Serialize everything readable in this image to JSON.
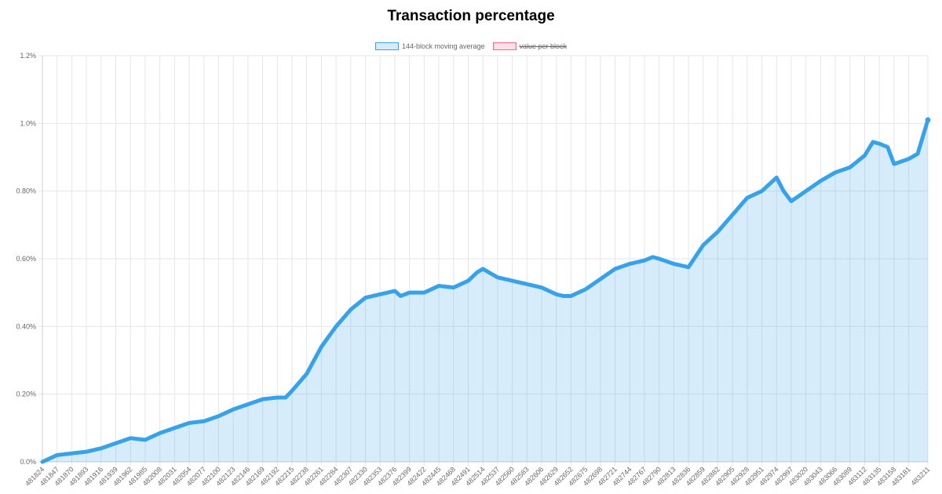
{
  "chart_data": {
    "type": "line",
    "title": "Transaction percentage",
    "xlabel": "",
    "ylabel": "",
    "ylim": [
      0,
      1.2
    ],
    "y_ticks": [
      "0.0%",
      "0.20%",
      "0.40%",
      "0.60%",
      "0.80%",
      "1.0%",
      "1.2%"
    ],
    "x_ticks": [
      "481824",
      "481847",
      "481870",
      "481893",
      "481916",
      "481939",
      "481962",
      "481985",
      "482008",
      "482031",
      "482054",
      "482077",
      "482100",
      "482123",
      "482146",
      "482169",
      "482192",
      "482215",
      "482238",
      "482261",
      "482284",
      "482307",
      "482330",
      "482353",
      "482376",
      "482399",
      "482422",
      "482445",
      "482468",
      "482491",
      "482514",
      "482537",
      "482560",
      "482583",
      "482606",
      "482629",
      "482652",
      "482675",
      "482698",
      "482721",
      "482744",
      "482767",
      "482790",
      "482813",
      "482836",
      "482859",
      "482882",
      "482905",
      "482928",
      "482951",
      "482974",
      "482997",
      "483020",
      "483043",
      "483066",
      "483089",
      "483112",
      "483135",
      "483158",
      "483181",
      "483211"
    ],
    "grid": true,
    "legend_position": "top",
    "series": [
      {
        "name": "144-block moving average",
        "color": "#36a2eb",
        "fill": "rgba(54,162,235,0.2)",
        "hidden": false,
        "x": [
          481824,
          481847,
          481870,
          481893,
          481916,
          481939,
          481962,
          481985,
          482008,
          482031,
          482054,
          482077,
          482100,
          482123,
          482146,
          482169,
          482192,
          482205,
          482215,
          482238,
          482261,
          482284,
          482307,
          482330,
          482353,
          482376,
          482385,
          482399,
          482422,
          482445,
          482468,
          482491,
          482505,
          482514,
          482537,
          482560,
          482583,
          482606,
          482629,
          482640,
          482652,
          482675,
          482698,
          482721,
          482744,
          482767,
          482780,
          482790,
          482813,
          482825,
          482836,
          482859,
          482882,
          482905,
          482928,
          482951,
          482974,
          482985,
          482997,
          483020,
          483043,
          483066,
          483089,
          483112,
          483125,
          483135,
          483148,
          483158,
          483181,
          483195,
          483211
        ],
        "values": [
          0.0,
          0.02,
          0.025,
          0.03,
          0.04,
          0.055,
          0.07,
          0.065,
          0.085,
          0.1,
          0.115,
          0.12,
          0.135,
          0.155,
          0.17,
          0.185,
          0.19,
          0.19,
          0.21,
          0.26,
          0.34,
          0.4,
          0.45,
          0.485,
          0.495,
          0.505,
          0.49,
          0.5,
          0.5,
          0.52,
          0.515,
          0.535,
          0.56,
          0.57,
          0.545,
          0.535,
          0.525,
          0.515,
          0.495,
          0.49,
          0.49,
          0.51,
          0.54,
          0.57,
          0.585,
          0.595,
          0.605,
          0.6,
          0.585,
          0.58,
          0.575,
          0.64,
          0.68,
          0.73,
          0.78,
          0.8,
          0.84,
          0.8,
          0.77,
          0.8,
          0.83,
          0.855,
          0.87,
          0.905,
          0.945,
          0.94,
          0.93,
          0.88,
          0.895,
          0.91,
          1.01
        ]
      },
      {
        "name": "value per block",
        "color": "#ff6384",
        "fill": "rgba(255,99,132,0.2)",
        "hidden": true,
        "values": []
      }
    ]
  },
  "legend": {
    "item1": "144-block moving average",
    "item2": "value per block"
  }
}
